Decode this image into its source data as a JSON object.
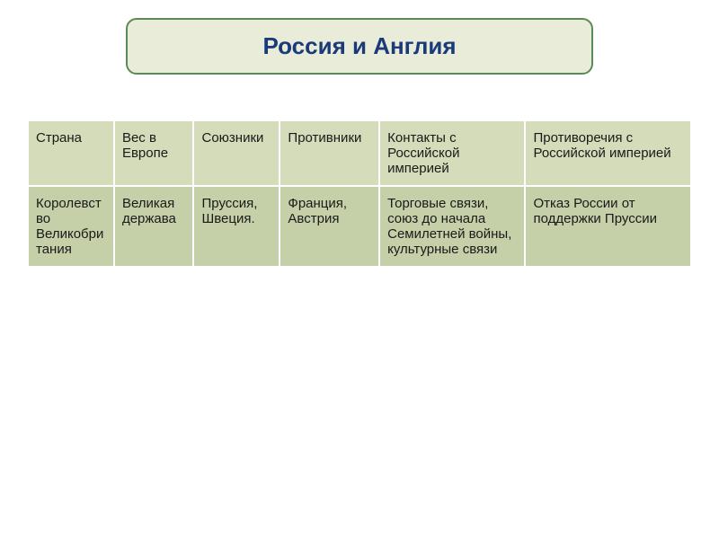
{
  "title": "Россия и Англия",
  "table": {
    "columns": [
      "Страна",
      "Вес в Европе",
      "Союзники",
      "Противники",
      "Контакты с Российской империей",
      "Противоречия с Российской империей"
    ],
    "rows": [
      {
        "country": "Королевство Великобритания",
        "weight": "Великая держава",
        "allies": "Пруссия, Швеция.",
        "opponents": "Франция, Австрия",
        "contacts": "Торговые связи, союз до начала Семилетней войны, культурные связи",
        "contradictions": "Отказ России от поддержки Пруссии"
      }
    ],
    "column_widths_pct": [
      13,
      12,
      13,
      15,
      22,
      25
    ]
  },
  "styling": {
    "title_box_bg": "#e8ecd9",
    "title_box_border": "#5a8a5a",
    "title_text_color": "#1a3a7a",
    "title_fontsize": 26,
    "header_bg": "#d4dcb9",
    "row_bg": "#c5cfa8",
    "cell_border_color": "#ffffff",
    "cell_fontsize": 15,
    "cell_text_color": "#1a1a1a",
    "background_color": "#ffffff"
  }
}
